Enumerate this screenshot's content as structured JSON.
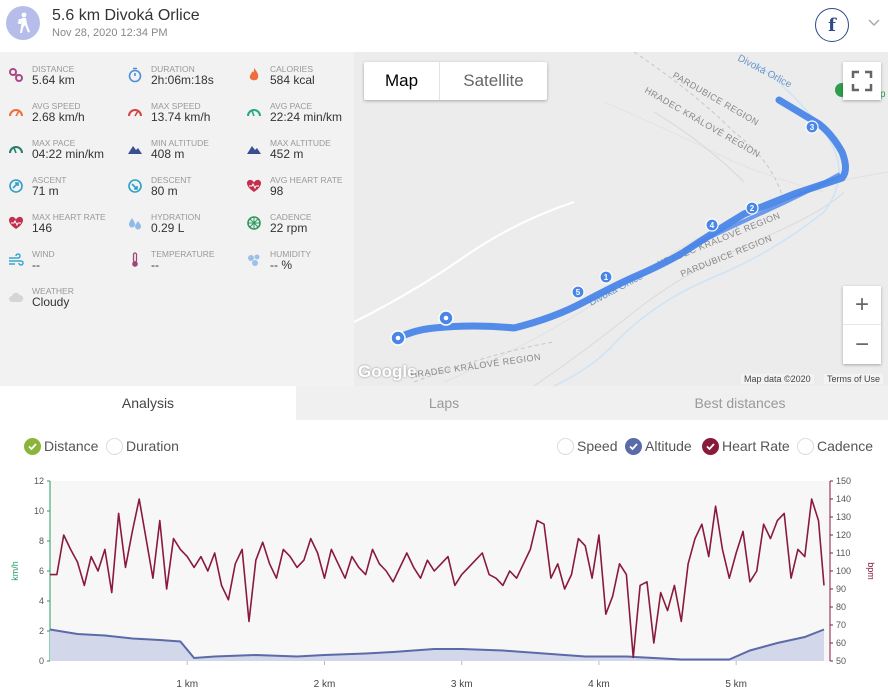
{
  "header": {
    "title": "5.6 km Divoká Orlice",
    "date": "Nov 28, 2020 12:34 PM"
  },
  "stats": [
    {
      "label": "DISTANCE",
      "value": "5.64 km",
      "icon": "distance-icon",
      "color": "#a94a86"
    },
    {
      "label": "DURATION",
      "value": "2h:06m:18s",
      "icon": "stopwatch-icon",
      "color": "#4d8fd9"
    },
    {
      "label": "CALORIES",
      "value": "584 kcal",
      "icon": "flame-icon",
      "color": "#ee6e3d"
    },
    {
      "label": "AVG SPEED",
      "value": "2.68 km/h",
      "icon": "speed-gauge-icon",
      "color": "#ee6e3d"
    },
    {
      "label": "MAX SPEED",
      "value": "13.74 km/h",
      "icon": "speed-gauge-icon",
      "color": "#d14444"
    },
    {
      "label": "AVG PACE",
      "value": "22:24 min/km",
      "icon": "pace-gauge-icon",
      "color": "#2aa58a"
    },
    {
      "label": "MAX PACE",
      "value": "04:22 min/km",
      "icon": "pace-gauge-icon",
      "color": "#2a7d6e"
    },
    {
      "label": "MIN ALTITUDE",
      "value": "408 m",
      "icon": "mountain-icon",
      "color": "#3a4f8f"
    },
    {
      "label": "MAX ALTITUDE",
      "value": "452 m",
      "icon": "mountain-icon",
      "color": "#3a4f8f"
    },
    {
      "label": "ASCENT",
      "value": "71 m",
      "icon": "ascent-icon",
      "color": "#2ea0c8"
    },
    {
      "label": "DESCENT",
      "value": "80 m",
      "icon": "descent-icon",
      "color": "#2ea0c8"
    },
    {
      "label": "AVG HEART RATE",
      "value": "98",
      "icon": "heart-icon",
      "color": "#c2304d"
    },
    {
      "label": "MAX HEART RATE",
      "value": "146",
      "icon": "heart-icon",
      "color": "#c2304d"
    },
    {
      "label": "HYDRATION",
      "value": "0.29 L",
      "icon": "water-drops-icon",
      "color": "#8fbbe8"
    },
    {
      "label": "CADENCE",
      "value": "22 rpm",
      "icon": "cadence-icon",
      "color": "#2e9a5e"
    },
    {
      "label": "WIND",
      "value": "--",
      "icon": "wind-icon",
      "color": "#3aa6d0"
    },
    {
      "label": "TEMPERATURE",
      "value": "--",
      "icon": "thermometer-icon",
      "color": "#a0457a"
    },
    {
      "label": "HUMIDITY",
      "value": "-- %",
      "icon": "humidity-icon",
      "color": "#9cc0ea"
    },
    {
      "label": "WEATHER",
      "value": "Cloudy",
      "icon": "cloud-icon",
      "color": "#d5d5d5"
    }
  ],
  "map": {
    "toggle_map": "Map",
    "toggle_satellite": "Satellite",
    "zoom_in": "+",
    "zoom_out": "−",
    "google": "Google",
    "map_data": "Map data ©2020",
    "terms": "Terms of Use",
    "labels": {
      "river_top": "Divoká Orlice",
      "river_mid": "Divoká Orlice",
      "pardubice_1": "PARDUBICE REGION",
      "hradec_1": "HRADEC KRÁLOVÉ REGION",
      "hradec_2": "HRADEC KRÁLOVÉ REGION",
      "pardubice_2": "PARDUBICE REGION",
      "hradec_3": "HRADEC KRÁLOVÉ REGION",
      "edge_p": "p"
    },
    "markers": [
      "1",
      "2",
      "3",
      "4",
      "5"
    ],
    "route_color": "#4a86e8"
  },
  "tabs": [
    "Analysis",
    "Laps",
    "Best distances"
  ],
  "options": {
    "left": [
      {
        "label": "Distance",
        "checked": true
      },
      {
        "label": "Duration",
        "checked": false
      }
    ],
    "right": [
      {
        "label": "Speed",
        "checked": false
      },
      {
        "label": "Altitude",
        "checked": true
      },
      {
        "label": "Heart Rate",
        "checked": true
      },
      {
        "label": "Cadence",
        "checked": false
      }
    ]
  },
  "colors": {
    "altitude": "#5b6aa8",
    "heart_rate": "#8a1a3c",
    "distance_check": "#8bb53a",
    "speed_axis": "#2a9a64"
  },
  "chart_data": {
    "type": "line",
    "xlabel": "",
    "x_ticks": [
      "1 km",
      "2 km",
      "3 km",
      "4 km",
      "5 km"
    ],
    "y_left_label": "km/h",
    "y_left_ticks": [
      "0",
      "2",
      "4",
      "6",
      "8",
      "10",
      "12"
    ],
    "y_left_lim": [
      0,
      12
    ],
    "y_right_label": "bpm",
    "y_right_ticks": [
      "50",
      "60",
      "70",
      "80",
      "90",
      "100",
      "110",
      "120",
      "130",
      "140",
      "150"
    ],
    "y_right_lim": [
      50,
      150
    ],
    "x_lim": [
      0,
      5.64
    ],
    "series": [
      {
        "name": "Altitude",
        "axis": "left",
        "x": [
          0,
          0.2,
          0.4,
          0.6,
          0.8,
          0.95,
          1.05,
          1.2,
          1.5,
          1.8,
          2.0,
          2.3,
          2.5,
          2.8,
          3.0,
          3.3,
          3.6,
          3.9,
          4.2,
          4.4,
          4.6,
          4.8,
          4.95,
          5.1,
          5.3,
          5.5,
          5.64
        ],
        "y": [
          2.1,
          1.8,
          1.7,
          1.5,
          1.4,
          1.3,
          0.2,
          0.3,
          0.4,
          0.3,
          0.4,
          0.5,
          0.6,
          0.8,
          0.8,
          0.7,
          0.5,
          0.3,
          0.3,
          0.2,
          0.1,
          0.1,
          0.1,
          0.7,
          1.2,
          1.6,
          2.1
        ]
      },
      {
        "name": "Heart Rate",
        "axis": "right",
        "x": [
          0,
          0.05,
          0.1,
          0.15,
          0.2,
          0.25,
          0.3,
          0.35,
          0.4,
          0.45,
          0.5,
          0.55,
          0.6,
          0.65,
          0.7,
          0.75,
          0.8,
          0.85,
          0.9,
          0.95,
          1.0,
          1.05,
          1.1,
          1.15,
          1.2,
          1.25,
          1.3,
          1.35,
          1.4,
          1.45,
          1.5,
          1.55,
          1.6,
          1.65,
          1.7,
          1.75,
          1.8,
          1.85,
          1.9,
          1.95,
          2.0,
          2.05,
          2.1,
          2.15,
          2.2,
          2.25,
          2.3,
          2.35,
          2.4,
          2.45,
          2.5,
          2.55,
          2.6,
          2.65,
          2.7,
          2.75,
          2.8,
          2.85,
          2.9,
          2.95,
          3.0,
          3.05,
          3.1,
          3.15,
          3.2,
          3.25,
          3.3,
          3.35,
          3.4,
          3.45,
          3.5,
          3.55,
          3.6,
          3.65,
          3.7,
          3.75,
          3.8,
          3.85,
          3.9,
          3.95,
          4.0,
          4.05,
          4.1,
          4.15,
          4.2,
          4.25,
          4.3,
          4.35,
          4.4,
          4.45,
          4.5,
          4.55,
          4.6,
          4.65,
          4.7,
          4.75,
          4.8,
          4.85,
          4.9,
          4.95,
          5.0,
          5.05,
          5.1,
          5.15,
          5.2,
          5.25,
          5.3,
          5.35,
          5.4,
          5.45,
          5.5,
          5.55,
          5.6,
          5.64
        ],
        "y": [
          98,
          98,
          120,
          112,
          105,
          92,
          108,
          100,
          112,
          88,
          132,
          102,
          122,
          140,
          118,
          96,
          128,
          90,
          118,
          112,
          108,
          102,
          108,
          100,
          110,
          92,
          84,
          104,
          112,
          72,
          106,
          116,
          104,
          96,
          112,
          108,
          102,
          106,
          118,
          110,
          96,
          112,
          104,
          96,
          108,
          102,
          98,
          112,
          104,
          100,
          94,
          102,
          110,
          102,
          96,
          106,
          100,
          104,
          108,
          92,
          98,
          102,
          106,
          110,
          98,
          96,
          92,
          100,
          96,
          104,
          112,
          128,
          126,
          96,
          104,
          90,
          98,
          118,
          114,
          96,
          120,
          76,
          86,
          104,
          98,
          52,
          92,
          94,
          60,
          88,
          78,
          92,
          72,
          104,
          118,
          126,
          108,
          136,
          112,
          96,
          110,
          122,
          94,
          100,
          126,
          118,
          128,
          132,
          96,
          112,
          108,
          140,
          128,
          92
        ]
      }
    ]
  }
}
